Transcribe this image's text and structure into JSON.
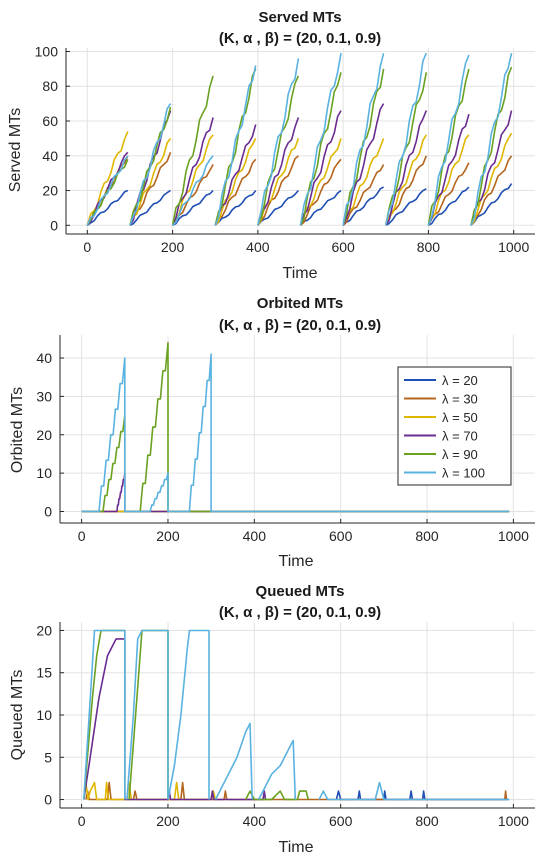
{
  "chart_data": [
    {
      "type": "line",
      "title": "Served MTs",
      "subtitle": "(K, α , β) =  (20, 0.1, 0.9)",
      "xlabel": "Time",
      "ylabel": "Served MTs",
      "xlim": [
        -50,
        1050
      ],
      "ylim": [
        -5,
        102
      ],
      "xticks": [
        0,
        200,
        400,
        600,
        800,
        1000
      ],
      "yticks": [
        0,
        20,
        40,
        60,
        80,
        100
      ],
      "grid": true,
      "series": [
        {
          "name": "λ = 20",
          "color": "#1f4eb4",
          "peaks": [
            20,
            20,
            20,
            20,
            20,
            20,
            22,
            21,
            22,
            24
          ]
        },
        {
          "name": "λ = 30",
          "color": "#b5651d",
          "peaks": [
            40,
            42,
            35,
            38,
            40,
            38,
            35,
            40,
            36,
            40
          ]
        },
        {
          "name": "λ = 50",
          "color": "#e0b600",
          "peaks": [
            54,
            50,
            52,
            50,
            50,
            50,
            50,
            52,
            52,
            53
          ]
        },
        {
          "name": "λ = 70",
          "color": "#6a2c91",
          "peaks": [
            42,
            66,
            62,
            58,
            62,
            66,
            70,
            66,
            64,
            66
          ]
        },
        {
          "name": "λ = 90",
          "color": "#6aa121",
          "peaks": [
            38,
            68,
            86,
            90,
            86,
            88,
            90,
            88,
            90,
            91
          ]
        },
        {
          "name": "λ = 100",
          "color": "#5ab2e0",
          "peaks": [
            40,
            70,
            40,
            92,
            96,
            99,
            99,
            99,
            98,
            99
          ]
        }
      ]
    },
    {
      "type": "line",
      "title": "Orbited MTs",
      "subtitle": "(K, α , β) =  (20, 0.1, 0.9)",
      "xlabel": "Time",
      "ylabel": "Orbited MTs",
      "xlim": [
        -50,
        1050
      ],
      "ylim": [
        -3,
        46
      ],
      "xticks": [
        0,
        200,
        400,
        600,
        800,
        1000
      ],
      "yticks": [
        0,
        10,
        20,
        30,
        40
      ],
      "grid": true,
      "legend": "right",
      "series": [
        {
          "name": "λ = 20",
          "color": "#1f4eb4",
          "ramps": []
        },
        {
          "name": "λ = 30",
          "color": "#b5651d",
          "ramps": []
        },
        {
          "name": "λ = 50",
          "color": "#e0b600",
          "ramps": []
        },
        {
          "name": "λ = 70",
          "color": "#6a2c91",
          "ramps": [
            [
              80,
              100,
              10
            ]
          ]
        },
        {
          "name": "λ = 90",
          "color": "#6aa121",
          "ramps": [
            [
              45,
              100,
              25
            ],
            [
              130,
              200,
              44
            ]
          ]
        },
        {
          "name": "λ = 100",
          "color": "#5ab2e0",
          "ramps": [
            [
              35,
              100,
              40
            ],
            [
              155,
              200,
              10
            ],
            [
              245,
              300,
              41
            ]
          ]
        }
      ]
    },
    {
      "type": "line",
      "title": "Queued MTs",
      "subtitle": "(K, α , β) =  (20, 0.1, 0.9)",
      "xlabel": "Time",
      "ylabel": "Queued MTs",
      "xlim": [
        -50,
        1050
      ],
      "ylim": [
        -1,
        21
      ],
      "xticks": [
        0,
        200,
        400,
        600,
        800,
        1000
      ],
      "yticks": [
        0,
        5,
        10,
        15,
        20
      ],
      "grid": true,
      "series": [
        {
          "name": "λ = 20",
          "color": "#1f4eb4",
          "segments": [
            [
              [
                590,
                0
              ],
              [
                595,
                1
              ],
              [
                600,
                0
              ],
              [
                640,
                0
              ],
              [
                643,
                1
              ],
              [
                646,
                0
              ],
              [
                700,
                0
              ],
              [
                702,
                1
              ],
              [
                705,
                0
              ],
              [
                760,
                0
              ],
              [
                763,
                1
              ],
              [
                766,
                0
              ],
              [
                790,
                0
              ],
              [
                792,
                1
              ],
              [
                795,
                0
              ],
              [
                990,
                0
              ]
            ]
          ]
        },
        {
          "name": "λ = 30",
          "color": "#b5651d",
          "segments": [
            [
              [
                10,
                0
              ],
              [
                14,
                1
              ],
              [
                18,
                0
              ],
              [
                60,
                0
              ],
              [
                64,
                2
              ],
              [
                68,
                0
              ],
              [
                120,
                0
              ],
              [
                124,
                1
              ],
              [
                128,
                0
              ],
              [
                230,
                0
              ],
              [
                234,
                2
              ],
              [
                238,
                0
              ],
              [
                330,
                0
              ],
              [
                333,
                1
              ],
              [
                336,
                0
              ],
              [
                980,
                0
              ],
              [
                982,
                1
              ],
              [
                984,
                0
              ]
            ]
          ]
        },
        {
          "name": "λ = 50",
          "color": "#e0b600",
          "segments": [
            [
              [
                5,
                0
              ],
              [
                10,
                2
              ],
              [
                15,
                0
              ],
              [
                20,
                1
              ],
              [
                30,
                2
              ],
              [
                35,
                0
              ],
              [
                55,
                0
              ],
              [
                58,
                2
              ],
              [
                62,
                0
              ],
              [
                105,
                0
              ],
              [
                110,
                2
              ],
              [
                115,
                0
              ],
              [
                215,
                0
              ],
              [
                220,
                2
              ],
              [
                225,
                0
              ],
              [
                300,
                0
              ],
              [
                305,
                1
              ],
              [
                310,
                0
              ]
            ]
          ]
        },
        {
          "name": "λ = 70",
          "color": "#6a2c91",
          "segments": [
            [
              [
                5,
                0
              ],
              [
                20,
                5
              ],
              [
                40,
                12
              ],
              [
                60,
                17
              ],
              [
                80,
                19
              ],
              [
                100,
                19
              ],
              [
                100,
                0
              ],
              [
                200,
                0
              ],
              [
                203,
                1
              ],
              [
                206,
                0
              ],
              [
                300,
                0
              ],
              [
                303,
                1
              ],
              [
                306,
                0
              ],
              [
                420,
                0
              ],
              [
                423,
                1
              ],
              [
                426,
                0
              ]
            ]
          ]
        },
        {
          "name": "λ = 90",
          "color": "#6aa121",
          "segments": [
            [
              [
                5,
                0
              ],
              [
                15,
                6
              ],
              [
                25,
                12
              ],
              [
                35,
                17
              ],
              [
                45,
                20
              ],
              [
                100,
                20
              ],
              [
                100,
                0
              ]
            ],
            [
              [
                110,
                0
              ],
              [
                125,
                10
              ],
              [
                140,
                20
              ],
              [
                200,
                20
              ],
              [
                200,
                0
              ]
            ],
            [
              [
                380,
                0
              ],
              [
                390,
                1
              ],
              [
                400,
                0
              ],
              [
                440,
                0
              ],
              [
                460,
                1
              ],
              [
                470,
                0
              ],
              [
                500,
                0
              ],
              [
                505,
                1
              ],
              [
                520,
                1
              ],
              [
                525,
                0
              ]
            ]
          ]
        },
        {
          "name": "λ = 100",
          "color": "#5ab2e0",
          "segments": [
            [
              [
                5,
                0
              ],
              [
                15,
                8
              ],
              [
                25,
                16
              ],
              [
                30,
                20
              ],
              [
                100,
                20
              ],
              [
                100,
                0
              ]
            ],
            [
              [
                105,
                0
              ],
              [
                120,
                10
              ],
              [
                130,
                19
              ],
              [
                140,
                20
              ],
              [
                200,
                20
              ],
              [
                200,
                0
              ]
            ],
            [
              [
                200,
                0
              ],
              [
                215,
                4
              ],
              [
                230,
                10
              ],
              [
                245,
                18
              ],
              [
                250,
                20
              ],
              [
                295,
                20
              ],
              [
                295,
                0
              ]
            ],
            [
              [
                310,
                0
              ],
              [
                320,
                1
              ],
              [
                340,
                3
              ],
              [
                360,
                5
              ],
              [
                380,
                8
              ],
              [
                390,
                9
              ],
              [
                395,
                0
              ]
            ],
            [
              [
                410,
                0
              ],
              [
                420,
                1
              ],
              [
                440,
                3
              ],
              [
                460,
                4
              ],
              [
                480,
                6
              ],
              [
                490,
                7
              ],
              [
                495,
                0
              ]
            ],
            [
              [
                550,
                0
              ],
              [
                560,
                1
              ],
              [
                570,
                0
              ],
              [
                680,
                0
              ],
              [
                690,
                2
              ],
              [
                700,
                0
              ],
              [
                990,
                0
              ]
            ]
          ]
        }
      ]
    }
  ]
}
